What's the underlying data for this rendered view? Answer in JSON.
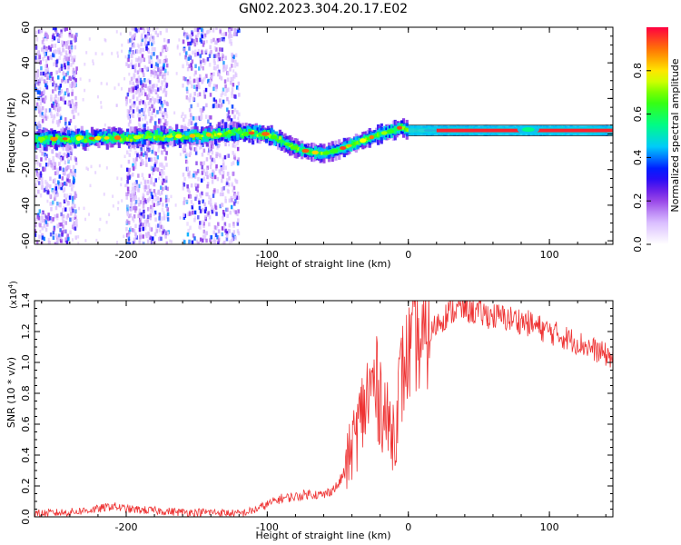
{
  "title": "GN02.2023.304.20.17.E02",
  "colors": {
    "snr_line": "#ee3333",
    "colormap": [
      "#ffffff",
      "#d6b7ff",
      "#8a2be2",
      "#0000ff",
      "#00c8ff",
      "#00ff80",
      "#40ff00",
      "#ffff00",
      "#ff8000",
      "#ff0040"
    ]
  },
  "chart_data": [
    {
      "type": "heatmap",
      "xlabel": "Height of straight line (km)",
      "ylabel": "Frequency (Hz)",
      "xlim": [
        -265,
        145
      ],
      "ylim": [
        -62,
        60
      ],
      "xticks": [
        -200,
        -100,
        0,
        100
      ],
      "xtick_labels": [
        "-200",
        "-100",
        "0",
        "100"
      ],
      "yticks": [
        -60,
        -40,
        -20,
        0,
        20,
        40,
        60
      ],
      "ytick_labels": [
        "-60",
        "-40",
        "-20",
        "0",
        "20",
        "40",
        "60"
      ],
      "colorbar": {
        "label": "Normalized spectral amplitude",
        "range": [
          0,
          1
        ],
        "ticks": [
          0,
          0.2,
          0.4,
          0.6,
          0.8
        ],
        "tick_labels": [
          "0.0",
          "0.2",
          "0.4",
          "0.6",
          "0.8"
        ]
      },
      "ridge": {
        "x": [
          -265,
          -200,
          -150,
          -120,
          -100,
          -90,
          -80,
          -70,
          -60,
          -50,
          -40,
          -30,
          -20,
          -10,
          -5,
          0,
          20,
          60,
          80,
          90,
          100,
          145
        ],
        "y": [
          -3,
          -2,
          -1,
          1,
          0,
          -4,
          -8,
          -10,
          -11,
          -9,
          -6,
          -3,
          0,
          2,
          4,
          2,
          2,
          2,
          2,
          2,
          2,
          2
        ]
      }
    },
    {
      "type": "line",
      "xlabel": "Height of straight line (km)",
      "ylabel": "SNR (10 * v/v)",
      "y_multiplier": "(x10",
      "y_multiplier_exp": "4",
      "y_multiplier_close": ")",
      "xlim": [
        -265,
        145
      ],
      "ylim": [
        0,
        1.4
      ],
      "xticks": [
        -200,
        -100,
        0,
        100
      ],
      "xtick_labels": [
        "-200",
        "-100",
        "0",
        "100"
      ],
      "yticks": [
        0,
        0.2,
        0.4,
        0.6,
        0.8,
        1.0,
        1.2,
        1.4
      ],
      "ytick_labels": [
        "0.0",
        "0.2",
        "0.4",
        "0.6",
        "0.8",
        "1.0",
        "1.2",
        "1.4"
      ],
      "series": [
        {
          "x": [
            -265,
            -240,
            -220,
            -210,
            -200,
            -180,
            -160,
            -140,
            -120,
            -110,
            -100,
            -90,
            -80,
            -70,
            -60,
            -50,
            -45,
            -40,
            -35,
            -30,
            -25,
            -20,
            -15,
            -10,
            -5,
            0,
            5,
            10,
            20,
            30,
            40,
            50,
            60,
            80,
            100,
            120,
            145
          ],
          "y": [
            0.02,
            0.03,
            0.05,
            0.07,
            0.05,
            0.04,
            0.03,
            0.03,
            0.02,
            0.04,
            0.08,
            0.12,
            0.13,
            0.15,
            0.14,
            0.2,
            0.3,
            0.45,
            0.6,
            0.75,
            0.85,
            0.8,
            0.6,
            0.55,
            0.9,
            1.05,
            1.15,
            1.1,
            1.25,
            1.33,
            1.35,
            1.32,
            1.3,
            1.27,
            1.2,
            1.13,
            1.03
          ],
          "noise": 0.05
        }
      ]
    }
  ]
}
